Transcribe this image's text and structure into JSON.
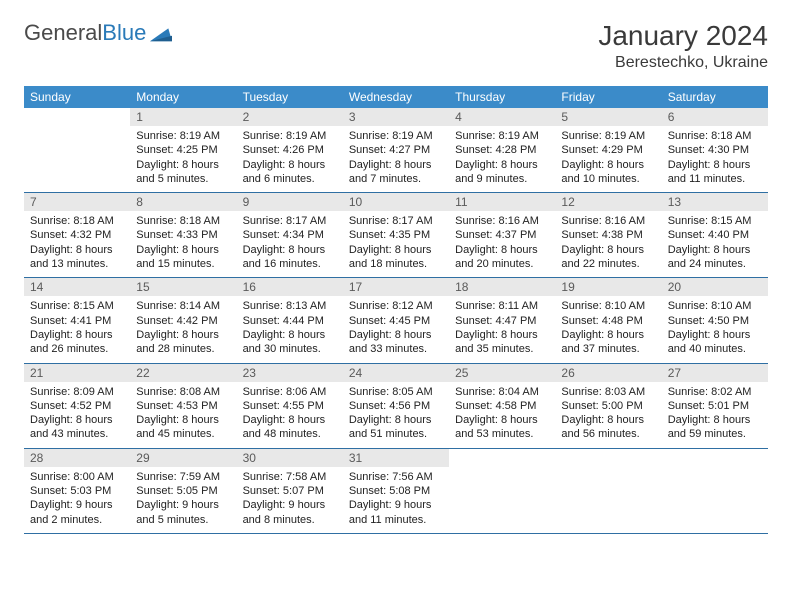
{
  "logo": {
    "word1": "General",
    "word2": "Blue"
  },
  "title": "January 2024",
  "location": "Berestechko, Ukraine",
  "colors": {
    "header_bg": "#3b8bc9",
    "header_text": "#ffffff",
    "daynum_bg": "#e8e8e8",
    "daynum_text": "#5a5a5a",
    "rule": "#2f6fa3",
    "logo_blue": "#2a7ab8",
    "logo_gray": "#4a4a4a",
    "body_text": "#222222"
  },
  "weekdays": [
    "Sunday",
    "Monday",
    "Tuesday",
    "Wednesday",
    "Thursday",
    "Friday",
    "Saturday"
  ],
  "weeks": [
    [
      null,
      {
        "n": "1",
        "sr": "8:19 AM",
        "ss": "4:25 PM",
        "dl": "8 hours and 5 minutes."
      },
      {
        "n": "2",
        "sr": "8:19 AM",
        "ss": "4:26 PM",
        "dl": "8 hours and 6 minutes."
      },
      {
        "n": "3",
        "sr": "8:19 AM",
        "ss": "4:27 PM",
        "dl": "8 hours and 7 minutes."
      },
      {
        "n": "4",
        "sr": "8:19 AM",
        "ss": "4:28 PM",
        "dl": "8 hours and 9 minutes."
      },
      {
        "n": "5",
        "sr": "8:19 AM",
        "ss": "4:29 PM",
        "dl": "8 hours and 10 minutes."
      },
      {
        "n": "6",
        "sr": "8:18 AM",
        "ss": "4:30 PM",
        "dl": "8 hours and 11 minutes."
      }
    ],
    [
      {
        "n": "7",
        "sr": "8:18 AM",
        "ss": "4:32 PM",
        "dl": "8 hours and 13 minutes."
      },
      {
        "n": "8",
        "sr": "8:18 AM",
        "ss": "4:33 PM",
        "dl": "8 hours and 15 minutes."
      },
      {
        "n": "9",
        "sr": "8:17 AM",
        "ss": "4:34 PM",
        "dl": "8 hours and 16 minutes."
      },
      {
        "n": "10",
        "sr": "8:17 AM",
        "ss": "4:35 PM",
        "dl": "8 hours and 18 minutes."
      },
      {
        "n": "11",
        "sr": "8:16 AM",
        "ss": "4:37 PM",
        "dl": "8 hours and 20 minutes."
      },
      {
        "n": "12",
        "sr": "8:16 AM",
        "ss": "4:38 PM",
        "dl": "8 hours and 22 minutes."
      },
      {
        "n": "13",
        "sr": "8:15 AM",
        "ss": "4:40 PM",
        "dl": "8 hours and 24 minutes."
      }
    ],
    [
      {
        "n": "14",
        "sr": "8:15 AM",
        "ss": "4:41 PM",
        "dl": "8 hours and 26 minutes."
      },
      {
        "n": "15",
        "sr": "8:14 AM",
        "ss": "4:42 PM",
        "dl": "8 hours and 28 minutes."
      },
      {
        "n": "16",
        "sr": "8:13 AM",
        "ss": "4:44 PM",
        "dl": "8 hours and 30 minutes."
      },
      {
        "n": "17",
        "sr": "8:12 AM",
        "ss": "4:45 PM",
        "dl": "8 hours and 33 minutes."
      },
      {
        "n": "18",
        "sr": "8:11 AM",
        "ss": "4:47 PM",
        "dl": "8 hours and 35 minutes."
      },
      {
        "n": "19",
        "sr": "8:10 AM",
        "ss": "4:48 PM",
        "dl": "8 hours and 37 minutes."
      },
      {
        "n": "20",
        "sr": "8:10 AM",
        "ss": "4:50 PM",
        "dl": "8 hours and 40 minutes."
      }
    ],
    [
      {
        "n": "21",
        "sr": "8:09 AM",
        "ss": "4:52 PM",
        "dl": "8 hours and 43 minutes."
      },
      {
        "n": "22",
        "sr": "8:08 AM",
        "ss": "4:53 PM",
        "dl": "8 hours and 45 minutes."
      },
      {
        "n": "23",
        "sr": "8:06 AM",
        "ss": "4:55 PM",
        "dl": "8 hours and 48 minutes."
      },
      {
        "n": "24",
        "sr": "8:05 AM",
        "ss": "4:56 PM",
        "dl": "8 hours and 51 minutes."
      },
      {
        "n": "25",
        "sr": "8:04 AM",
        "ss": "4:58 PM",
        "dl": "8 hours and 53 minutes."
      },
      {
        "n": "26",
        "sr": "8:03 AM",
        "ss": "5:00 PM",
        "dl": "8 hours and 56 minutes."
      },
      {
        "n": "27",
        "sr": "8:02 AM",
        "ss": "5:01 PM",
        "dl": "8 hours and 59 minutes."
      }
    ],
    [
      {
        "n": "28",
        "sr": "8:00 AM",
        "ss": "5:03 PM",
        "dl": "9 hours and 2 minutes."
      },
      {
        "n": "29",
        "sr": "7:59 AM",
        "ss": "5:05 PM",
        "dl": "9 hours and 5 minutes."
      },
      {
        "n": "30",
        "sr": "7:58 AM",
        "ss": "5:07 PM",
        "dl": "9 hours and 8 minutes."
      },
      {
        "n": "31",
        "sr": "7:56 AM",
        "ss": "5:08 PM",
        "dl": "9 hours and 11 minutes."
      },
      null,
      null,
      null
    ]
  ],
  "labels": {
    "sunrise": "Sunrise:",
    "sunset": "Sunset:",
    "daylight": "Daylight:"
  }
}
